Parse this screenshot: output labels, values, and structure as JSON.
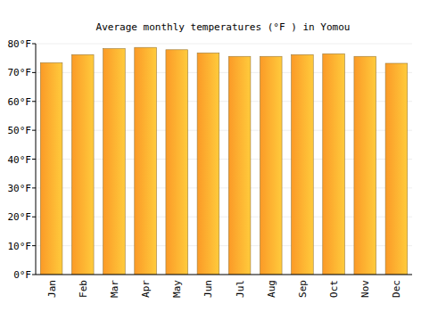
{
  "chart_data": {
    "type": "bar",
    "title": "Average monthly temperatures (°F ) in Yomou",
    "categories": [
      "Jan",
      "Feb",
      "Mar",
      "Apr",
      "May",
      "Jun",
      "Jul",
      "Aug",
      "Sep",
      "Oct",
      "Nov",
      "Dec"
    ],
    "values": [
      73.4,
      76.2,
      78.3,
      78.7,
      77.9,
      76.8,
      75.6,
      75.6,
      76.2,
      76.5,
      75.6,
      73.2
    ],
    "color": "#fb9a27",
    "ylim": [
      0,
      80
    ],
    "yticks": [
      {
        "value": 0,
        "label": "0°F"
      },
      {
        "value": 10,
        "label": "10°F"
      },
      {
        "value": 20,
        "label": "20°F"
      },
      {
        "value": 30,
        "label": "30°F"
      },
      {
        "value": 40,
        "label": "40°F"
      },
      {
        "value": 50,
        "label": "50°F"
      },
      {
        "value": 60,
        "label": "60°F"
      },
      {
        "value": 70,
        "label": "70°F"
      },
      {
        "value": 80,
        "label": "80°F"
      }
    ],
    "grid": true
  }
}
